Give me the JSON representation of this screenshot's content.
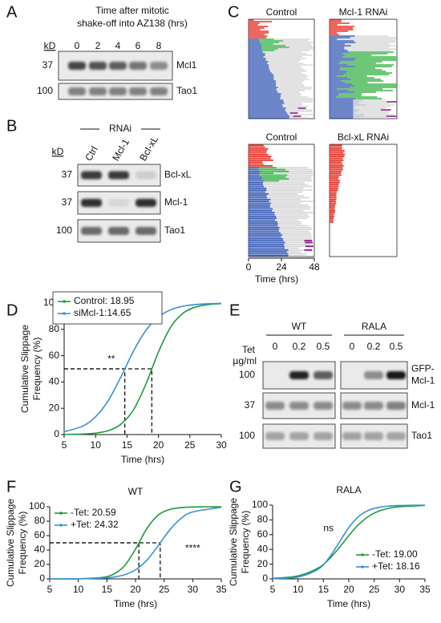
{
  "panel_labels": [
    "A",
    "B",
    "C",
    "D",
    "E",
    "F",
    "G"
  ],
  "panel_a": {
    "title_lines": [
      "Time after mitotic",
      "shake-off into AZ138 (hrs)"
    ],
    "kd": "kD",
    "lanes": [
      "0",
      "2",
      "4",
      "6",
      "8"
    ],
    "rows": [
      {
        "mw": "37",
        "label": "Mcl1"
      },
      {
        "mw": "100",
        "label": "Tao1"
      }
    ]
  },
  "panel_b": {
    "heading": "RNAi",
    "kd": "kD",
    "lanes": [
      "Ctrl",
      "Mcl-1",
      "Bcl-xL"
    ],
    "rows": [
      {
        "mw": "37",
        "label": "Bcl-xL"
      },
      {
        "mw": "37",
        "label": "Mcl-1"
      },
      {
        "mw": "100",
        "label": "Tao1"
      }
    ]
  },
  "panel_c": {
    "plots": [
      "Control",
      "Mcl-1 RNAi",
      "Control",
      "Bcl-xL RNAi"
    ],
    "xticks": [
      0,
      24,
      48
    ],
    "xlabel": "Time (hrs)"
  },
  "panel_e": {
    "groups": [
      "WT",
      "RALA"
    ],
    "tet_label": [
      "Tet",
      "µg/ml"
    ],
    "lanes": [
      "0",
      "0.2",
      "0.5"
    ],
    "rows": [
      {
        "mw": "100",
        "label": [
          "GFP-",
          "Mcl-1"
        ]
      },
      {
        "mw": "37",
        "label": [
          "Mcl-1"
        ]
      },
      {
        "mw": "100",
        "label": [
          "Tao1"
        ]
      }
    ]
  },
  "chart_data": [
    {
      "type": "line",
      "xlabel": "Time (hrs)",
      "ylabel": [
        "Cumulative Slippage",
        "Frequency (%)"
      ],
      "x": [
        5,
        8,
        10,
        12,
        14,
        16,
        18,
        20,
        22,
        24,
        26,
        28,
        30
      ],
      "series": [
        {
          "name": "Control: 18.95",
          "color": "#1f9a3c",
          "values": [
            0.1,
            0.4,
            1.1,
            3.0,
            7.8,
            18.6,
            38.3,
            62.8,
            82.1,
            92.6,
            97.1,
            98.9,
            99.6
          ]
        },
        {
          "name": "siMcl-1:14.65",
          "color": "#3b8fd6",
          "values": [
            2.1,
            6.5,
            13.5,
            25.7,
            43.5,
            63.2,
            79.2,
            89.5,
            95.0,
            97.7,
            98.9,
            99.5,
            99.8
          ]
        }
      ],
      "xlim": [
        5,
        30
      ],
      "xticks": [
        5,
        10,
        15,
        20,
        25,
        30
      ],
      "ylim": [
        0,
        100
      ],
      "yticks": [
        0,
        20,
        40,
        60,
        80,
        100
      ],
      "legend": "above",
      "reference_lines": [
        {
          "x": 18.95,
          "y": 50
        },
        {
          "x": 14.65,
          "y": 50
        }
      ],
      "annotations": [
        "**"
      ]
    },
    {
      "type": "line",
      "title": "WT",
      "xlabel": "Time (hrs)",
      "ylabel": [
        "Cumulative Slippage",
        "Frequency (%)"
      ],
      "x": [
        5,
        10,
        14,
        16,
        18,
        20,
        22,
        24,
        26,
        28,
        30,
        35
      ],
      "series": [
        {
          "name": "-Tet: 20.59",
          "color": "#1f9a3c",
          "values": [
            0.0,
            0.2,
            1.9,
            6.0,
            17.5,
            41.2,
            70.0,
            88.6,
            96.2,
            98.8,
            99.7,
            100.0
          ]
        },
        {
          "name": "+Tet: 24.32",
          "color": "#3b8fd6",
          "values": [
            0.0,
            0.2,
            1.0,
            2.3,
            5.5,
            12.5,
            26.0,
            46.4,
            68.0,
            84.0,
            92.8,
            99.2
          ]
        }
      ],
      "xlim": [
        5,
        35
      ],
      "xticks": [
        5,
        10,
        15,
        20,
        25,
        30,
        35
      ],
      "ylim": [
        0,
        100
      ],
      "yticks": [
        0,
        20,
        40,
        60,
        80,
        100
      ],
      "legend": "top-left",
      "reference_lines": [
        {
          "x": 20.59,
          "y": 50
        },
        {
          "x": 24.32,
          "y": 50
        }
      ],
      "annotations": [
        "****"
      ]
    },
    {
      "type": "line",
      "title": "RALA",
      "xlabel": "Time (hrs)",
      "ylabel": [
        "Cumulative Slippage",
        "Frequency (%)"
      ],
      "x": [
        5,
        10,
        14,
        16,
        18,
        20,
        22,
        24,
        26,
        28,
        30,
        35
      ],
      "series": [
        {
          "name": "-Tet: 19.00",
          "color": "#1f9a3c",
          "values": [
            0.7,
            4.1,
            14.8,
            25.9,
            41.3,
            58.7,
            74.1,
            85.2,
            92.1,
            95.9,
            97.9,
            99.6
          ]
        },
        {
          "name": "+Tet: 18.16",
          "color": "#3b8fd6",
          "values": [
            0.3,
            2.5,
            13.3,
            27.5,
            48.2,
            69.6,
            84.9,
            93.3,
            97.1,
            98.8,
            99.5,
            100.0
          ]
        }
      ],
      "xlim": [
        5,
        35
      ],
      "xticks": [
        5,
        10,
        15,
        20,
        25,
        30,
        35
      ],
      "ylim": [
        0,
        100
      ],
      "yticks": [
        0,
        20,
        40,
        60,
        80,
        100
      ],
      "legend": "bottom-right",
      "annotations": [
        "ns"
      ]
    }
  ]
}
